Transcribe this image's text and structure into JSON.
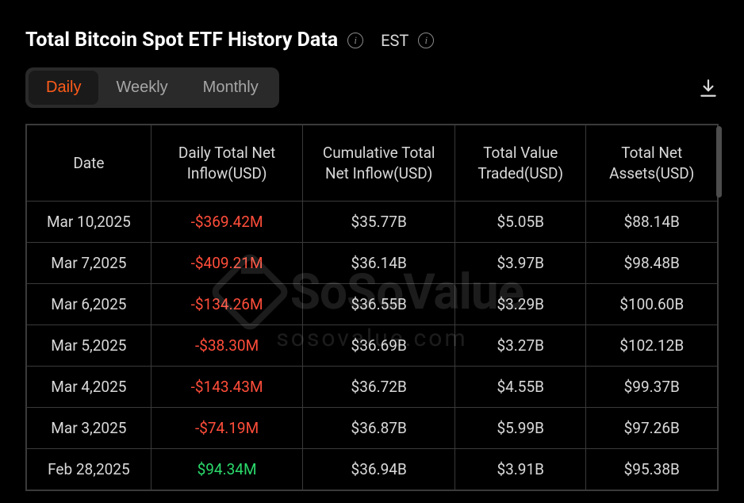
{
  "header": {
    "title": "Total Bitcoin Spot ETF History Data",
    "timezone": "EST"
  },
  "tabs": {
    "items": [
      {
        "label": "Daily",
        "active": true
      },
      {
        "label": "Weekly",
        "active": false
      },
      {
        "label": "Monthly",
        "active": false
      }
    ]
  },
  "table": {
    "columns": [
      "Date",
      "Daily Total Net Inflow(USD)",
      "Cumulative Total Net Inflow(USD)",
      "Total Value Traded(USD)",
      "Total Net Assets(USD)"
    ],
    "column_widths_pct": [
      18,
      22,
      22,
      19,
      19
    ],
    "rows": [
      {
        "date": "Mar 10,2025",
        "net_inflow": "-$369.42M",
        "net_inflow_dir": "neg",
        "cumulative": "$35.77B",
        "traded": "$5.05B",
        "assets": "$88.14B"
      },
      {
        "date": "Mar 7,2025",
        "net_inflow": "-$409.21M",
        "net_inflow_dir": "neg",
        "cumulative": "$36.14B",
        "traded": "$3.97B",
        "assets": "$98.48B"
      },
      {
        "date": "Mar 6,2025",
        "net_inflow": "-$134.26M",
        "net_inflow_dir": "neg",
        "cumulative": "$36.55B",
        "traded": "$3.29B",
        "assets": "$100.60B"
      },
      {
        "date": "Mar 5,2025",
        "net_inflow": "-$38.30M",
        "net_inflow_dir": "neg",
        "cumulative": "$36.69B",
        "traded": "$3.27B",
        "assets": "$102.12B"
      },
      {
        "date": "Mar 4,2025",
        "net_inflow": "-$143.43M",
        "net_inflow_dir": "neg",
        "cumulative": "$36.72B",
        "traded": "$4.55B",
        "assets": "$99.37B"
      },
      {
        "date": "Mar 3,2025",
        "net_inflow": "-$74.19M",
        "net_inflow_dir": "neg",
        "cumulative": "$36.87B",
        "traded": "$5.99B",
        "assets": "$97.26B"
      },
      {
        "date": "Feb 28,2025",
        "net_inflow": "$94.34M",
        "net_inflow_dir": "pos",
        "cumulative": "$36.94B",
        "traded": "$3.91B",
        "assets": "$95.38B"
      }
    ]
  },
  "colors": {
    "background": "#000000",
    "text_primary": "#ffffff",
    "text_body": "#d9d9d9",
    "text_muted": "#a6a6a6",
    "accent": "#ff5c1a",
    "negative": "#ff4d3a",
    "positive": "#2bd96b",
    "border": "#3a3a3a",
    "tab_bg": "#2a2a2a",
    "tab_active_bg": "#1a1a1a",
    "scroll_thumb": "#4d4d4d"
  },
  "watermark": {
    "brand": "SoSoValue",
    "url": "sosovalue.com"
  }
}
